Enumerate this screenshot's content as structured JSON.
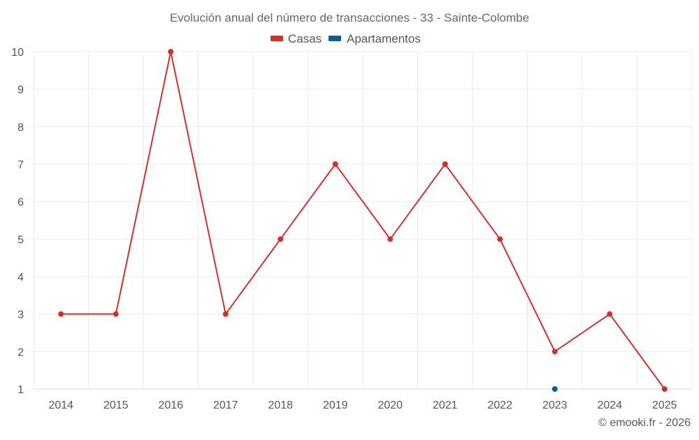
{
  "chart_data": {
    "type": "line",
    "title": "Evolución anual del número de transacciones - 33 - Sainte-Colombe",
    "categories": [
      "2014",
      "2015",
      "2016",
      "2017",
      "2018",
      "2019",
      "2020",
      "2021",
      "2022",
      "2023",
      "2024",
      "2025"
    ],
    "series": [
      {
        "name": "Casas",
        "color": "#d32f2f",
        "values": [
          3,
          3,
          10,
          3,
          5,
          7,
          5,
          7,
          5,
          2,
          3,
          1
        ]
      },
      {
        "name": "Apartamentos",
        "color": "#0b5f8f",
        "values": [
          null,
          null,
          null,
          null,
          null,
          null,
          null,
          null,
          null,
          1,
          null,
          null
        ]
      }
    ],
    "y_ticks": [
      "1",
      "2",
      "3",
      "4",
      "5",
      "6",
      "7",
      "8",
      "9",
      "10"
    ],
    "ylim": [
      1,
      10
    ],
    "xlabel": "",
    "ylabel": "",
    "grid": true,
    "legend_position": "top-center"
  },
  "credit": "© emooki.fr - 2026"
}
